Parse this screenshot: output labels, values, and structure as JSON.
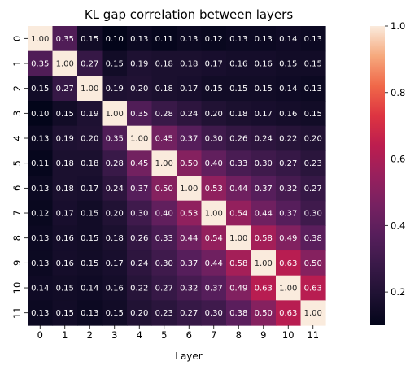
{
  "chart_data": {
    "type": "heatmap",
    "title": "KL gap correlation between layers",
    "xlabel": "Layer",
    "ylabel": "",
    "x_categories": [
      "0",
      "1",
      "2",
      "3",
      "4",
      "5",
      "6",
      "7",
      "8",
      "9",
      "10",
      "11"
    ],
    "y_categories": [
      "0",
      "1",
      "2",
      "3",
      "4",
      "5",
      "6",
      "7",
      "8",
      "9",
      "10",
      "11"
    ],
    "values": [
      [
        1.0,
        0.35,
        0.15,
        0.1,
        0.13,
        0.11,
        0.13,
        0.12,
        0.13,
        0.13,
        0.14,
        0.13
      ],
      [
        0.35,
        1.0,
        0.27,
        0.15,
        0.19,
        0.18,
        0.18,
        0.17,
        0.16,
        0.16,
        0.15,
        0.15
      ],
      [
        0.15,
        0.27,
        1.0,
        0.19,
        0.2,
        0.18,
        0.17,
        0.15,
        0.15,
        0.15,
        0.14,
        0.13
      ],
      [
        0.1,
        0.15,
        0.19,
        1.0,
        0.35,
        0.28,
        0.24,
        0.2,
        0.18,
        0.17,
        0.16,
        0.15
      ],
      [
        0.13,
        0.19,
        0.2,
        0.35,
        1.0,
        0.45,
        0.37,
        0.3,
        0.26,
        0.24,
        0.22,
        0.2
      ],
      [
        0.11,
        0.18,
        0.18,
        0.28,
        0.45,
        1.0,
        0.5,
        0.4,
        0.33,
        0.3,
        0.27,
        0.23
      ],
      [
        0.13,
        0.18,
        0.17,
        0.24,
        0.37,
        0.5,
        1.0,
        0.53,
        0.44,
        0.37,
        0.32,
        0.27
      ],
      [
        0.12,
        0.17,
        0.15,
        0.2,
        0.3,
        0.4,
        0.53,
        1.0,
        0.54,
        0.44,
        0.37,
        0.3
      ],
      [
        0.13,
        0.16,
        0.15,
        0.18,
        0.26,
        0.33,
        0.44,
        0.54,
        1.0,
        0.58,
        0.49,
        0.38
      ],
      [
        0.13,
        0.16,
        0.15,
        0.17,
        0.24,
        0.3,
        0.37,
        0.44,
        0.58,
        1.0,
        0.63,
        0.5
      ],
      [
        0.14,
        0.15,
        0.14,
        0.16,
        0.22,
        0.27,
        0.32,
        0.37,
        0.49,
        0.63,
        1.0,
        0.63
      ],
      [
        0.13,
        0.15,
        0.13,
        0.15,
        0.2,
        0.23,
        0.27,
        0.3,
        0.38,
        0.5,
        0.63,
        1.0
      ]
    ],
    "colormap": "rocket",
    "color_range": [
      0.1,
      1.0
    ],
    "colorbar_ticks": [
      "0.2",
      "0.4",
      "0.6",
      "0.8",
      "1.0"
    ],
    "annotations": "values shown in each cell with 2 decimals",
    "grid": false,
    "legend": "colorbar on right"
  }
}
